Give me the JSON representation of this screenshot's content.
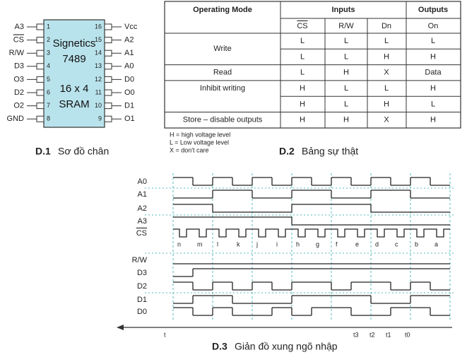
{
  "pinout": {
    "chip_lines": [
      "Signetics",
      "7489",
      "16 x 4",
      "SRAM"
    ],
    "left_pins": [
      {
        "number": 1,
        "label": "A3"
      },
      {
        "number": 2,
        "label": "CS"
      },
      {
        "number": 3,
        "label": "R/W"
      },
      {
        "number": 4,
        "label": "D3"
      },
      {
        "number": 5,
        "label": "O3"
      },
      {
        "number": 6,
        "label": "D2"
      },
      {
        "number": 7,
        "label": "O2"
      },
      {
        "number": 8,
        "label": "GND"
      }
    ],
    "right_pins": [
      {
        "number": 16,
        "label": "Vcc"
      },
      {
        "number": 15,
        "label": "A2"
      },
      {
        "number": 14,
        "label": "A1"
      },
      {
        "number": 13,
        "label": "A0"
      },
      {
        "number": 12,
        "label": "D0"
      },
      {
        "number": 11,
        "label": "O0"
      },
      {
        "number": 10,
        "label": "D1"
      },
      {
        "number": 9,
        "label": "O1"
      }
    ],
    "caption": {
      "label": "D.1",
      "text": "Sơ đồ chân"
    }
  },
  "truth_table": {
    "headers": [
      "Operating Mode",
      "Inputs",
      "Outputs"
    ],
    "subheaders": [
      "CS",
      "R/W",
      "Dn",
      "On"
    ],
    "modes": [
      {
        "name": "Write",
        "rows": [
          [
            "L",
            "L",
            "L",
            "L"
          ],
          [
            "L",
            "L",
            "H",
            "H"
          ]
        ]
      },
      {
        "name": "Read",
        "rows": [
          [
            "L",
            "H",
            "X",
            "Data"
          ]
        ]
      },
      {
        "name": "Inhibit writing",
        "rows": [
          [
            "H",
            "L",
            "L",
            "H"
          ],
          [
            "H",
            "L",
            "H",
            "L"
          ]
        ]
      },
      {
        "name": "Store – disable outputs",
        "rows": [
          [
            "H",
            "H",
            "X",
            "H"
          ]
        ]
      }
    ],
    "notes": [
      "H = high voltage level",
      "L = Low voltage level",
      "X = don't care"
    ],
    "caption": {
      "label": "D.2",
      "text": "Bảng sự thật"
    }
  },
  "timing": {
    "signals": [
      {
        "name": "A0",
        "levels": [
          1,
          0,
          1,
          0,
          1,
          0,
          1,
          0,
          1,
          0,
          1,
          0,
          1,
          0
        ]
      },
      {
        "name": "A1",
        "levels": [
          0,
          0,
          1,
          1,
          0,
          0,
          1,
          1,
          0,
          0,
          1,
          1,
          0,
          0
        ]
      },
      {
        "name": "A2",
        "levels": [
          1,
          1,
          0,
          0,
          0,
          0,
          1,
          1,
          1,
          1,
          0,
          0,
          0,
          0
        ]
      },
      {
        "name": "A3",
        "levels": [
          1,
          1,
          1,
          1,
          1,
          1,
          0,
          0,
          0,
          0,
          0,
          0,
          0,
          0
        ]
      },
      {
        "name": "CS",
        "strobe": true
      },
      {
        "name": "R/W",
        "levels": [
          0,
          0,
          0,
          0,
          0,
          0,
          0,
          0,
          0,
          0,
          0,
          0,
          0,
          0
        ]
      },
      {
        "name": "D3",
        "levels": [
          0,
          1,
          1,
          1,
          1,
          1,
          1,
          1,
          1,
          1,
          1,
          1,
          1,
          1
        ]
      },
      {
        "name": "D2",
        "levels": [
          1,
          0,
          1,
          0,
          1,
          0,
          1,
          1,
          0,
          1,
          1,
          0,
          1,
          0
        ]
      },
      {
        "name": "D1",
        "levels": [
          0,
          1,
          1,
          0,
          0,
          0,
          1,
          1,
          1,
          1,
          0,
          0,
          1,
          1
        ]
      },
      {
        "name": "D0",
        "levels": [
          1,
          0,
          1,
          0,
          0,
          1,
          0,
          1,
          1,
          0,
          0,
          1,
          1,
          0
        ]
      }
    ],
    "slot_labels": [
      "n",
      "m",
      "l",
      "k",
      "j",
      "i",
      "h",
      "g",
      "f",
      "e",
      "d",
      "c",
      "b",
      "a"
    ],
    "time_labels": [
      "t",
      "t3",
      "t2",
      "t1",
      "t0"
    ],
    "caption": {
      "label": "D.3",
      "text": "Giản đồ xung ngõ nhập"
    }
  }
}
